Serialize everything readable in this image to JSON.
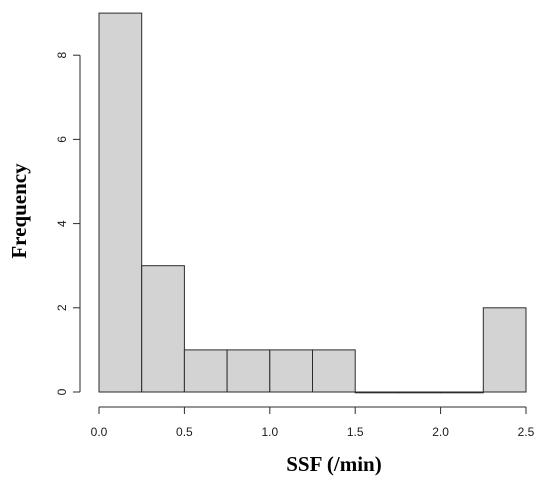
{
  "chart_data": {
    "type": "bar",
    "title": "",
    "xlabel": "SSF (/min)",
    "ylabel": "Frequency",
    "bins": [
      {
        "start": 0.0,
        "end": 0.25,
        "count": 9
      },
      {
        "start": 0.25,
        "end": 0.5,
        "count": 3
      },
      {
        "start": 0.5,
        "end": 0.75,
        "count": 1
      },
      {
        "start": 0.75,
        "end": 1.0,
        "count": 1
      },
      {
        "start": 1.0,
        "end": 1.25,
        "count": 1
      },
      {
        "start": 1.25,
        "end": 1.5,
        "count": 1
      },
      {
        "start": 1.5,
        "end": 1.75,
        "count": 0
      },
      {
        "start": 1.75,
        "end": 2.0,
        "count": 0
      },
      {
        "start": 2.0,
        "end": 2.25,
        "count": 0
      },
      {
        "start": 2.25,
        "end": 2.5,
        "count": 2
      }
    ],
    "xlim": [
      0.0,
      2.5
    ],
    "ylim": [
      0,
      9
    ],
    "x_ticks": [
      "0.0",
      "0.5",
      "1.0",
      "1.5",
      "2.0",
      "2.5"
    ],
    "y_ticks": [
      "0",
      "2",
      "4",
      "6",
      "8"
    ],
    "bar_color": "#d3d3d3",
    "grid": false,
    "legend": "none"
  }
}
